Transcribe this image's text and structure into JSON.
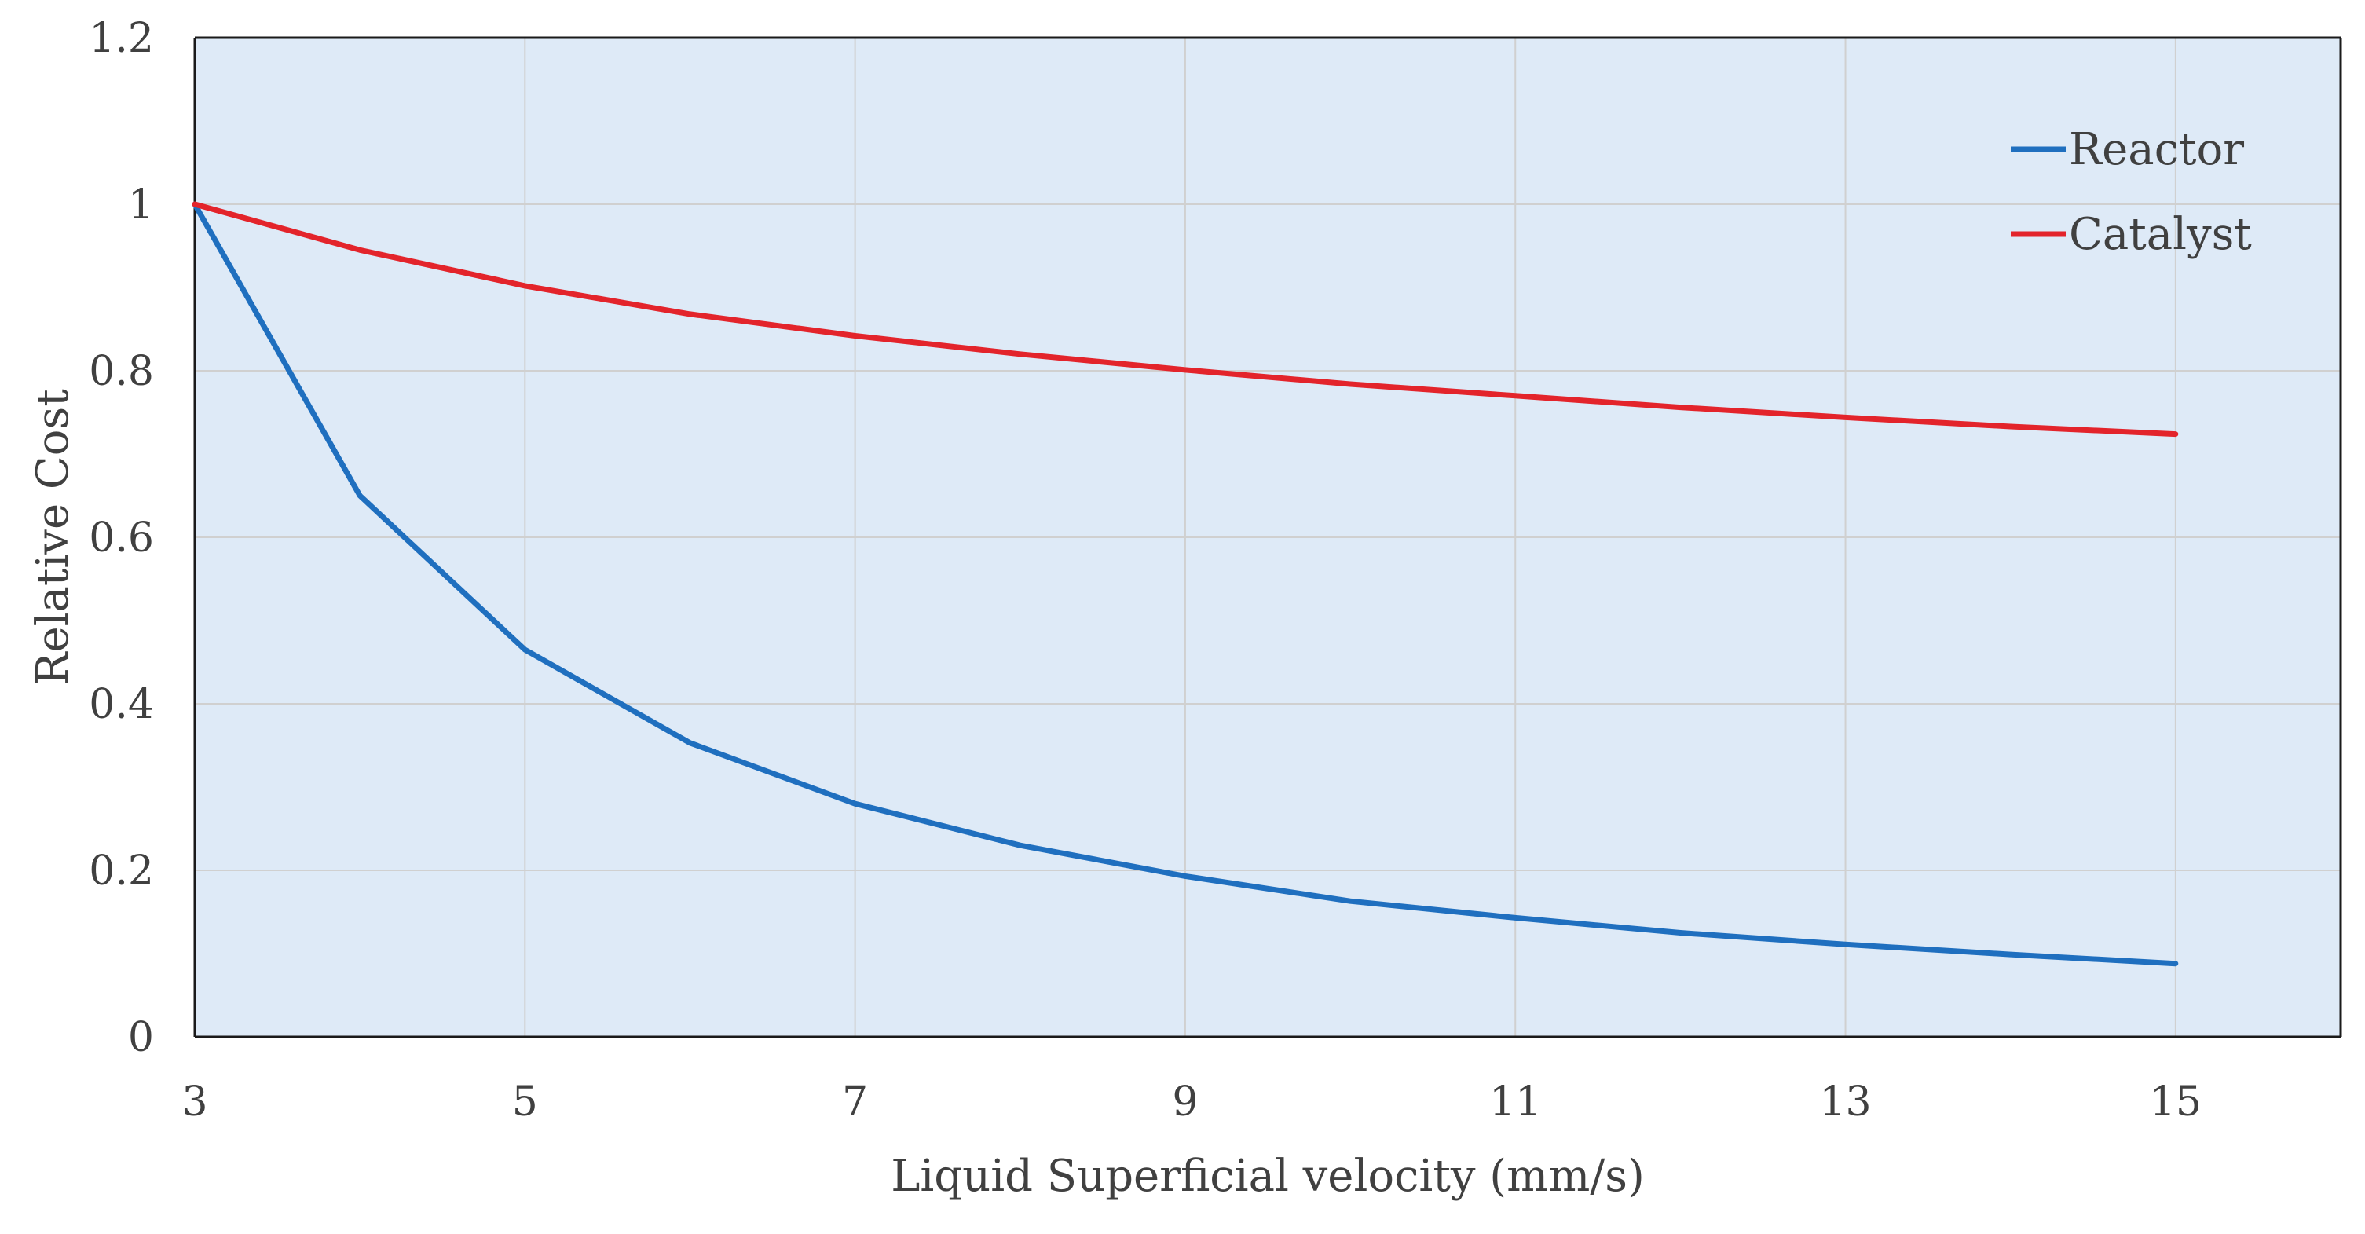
{
  "chart_data": {
    "type": "line",
    "title": "",
    "xlabel": "Liquid Superficial velocity (mm/s)",
    "ylabel": "Relative Cost",
    "xlim": [
      3,
      16
    ],
    "ylim": [
      0,
      1.2
    ],
    "xticks": [
      3,
      5,
      7,
      9,
      11,
      13,
      15
    ],
    "xtick_labels": [
      "3",
      "5",
      "7",
      "9",
      "11",
      "13",
      "15"
    ],
    "yticks": [
      0,
      0.2,
      0.4,
      0.6,
      0.8,
      1.0,
      1.2
    ],
    "ytick_labels": [
      "0",
      "0.2",
      "0.4",
      "0.6",
      "0.8",
      "1",
      "1.2"
    ],
    "grid": true,
    "legend_position": "top-right",
    "x": [
      3,
      4,
      5,
      6,
      7,
      8,
      9,
      10,
      11,
      12,
      13,
      14,
      15
    ],
    "series": [
      {
        "name": "Reactor",
        "color": "#1f6fbf",
        "values": [
          1.0,
          0.65,
          0.465,
          0.353,
          0.28,
          0.23,
          0.193,
          0.163,
          0.143,
          0.125,
          0.111,
          0.099,
          0.088
        ]
      },
      {
        "name": "Catalyst",
        "color": "#e3242b",
        "values": [
          1.0,
          0.945,
          0.902,
          0.868,
          0.842,
          0.82,
          0.801,
          0.784,
          0.77,
          0.756,
          0.744,
          0.733,
          0.724
        ]
      }
    ],
    "plot_background": "#deeaf7",
    "grid_color": "#d0d0d0"
  }
}
